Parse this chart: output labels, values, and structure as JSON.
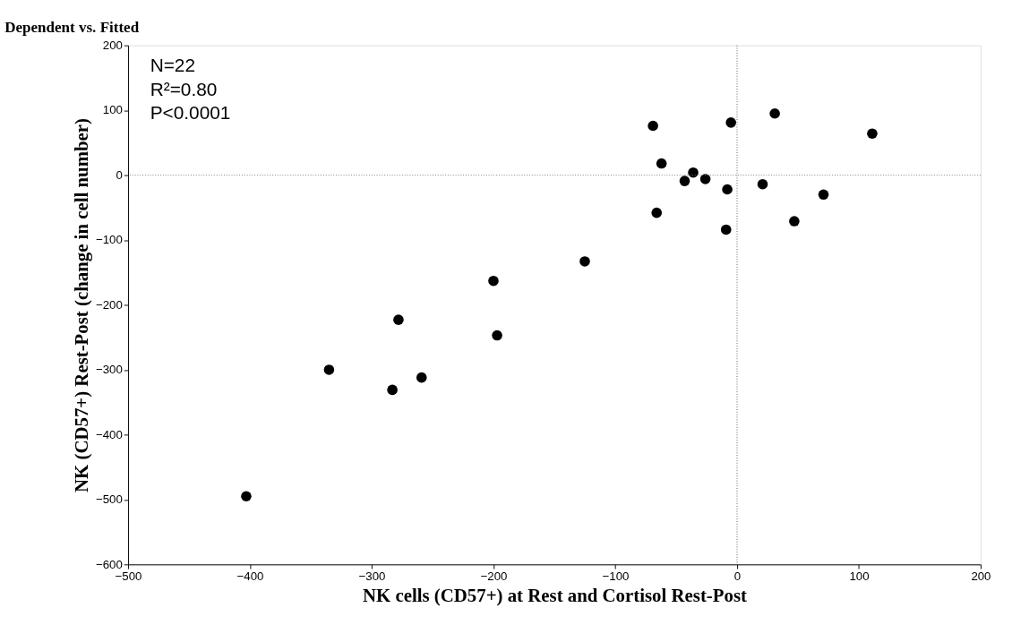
{
  "chart_data": {
    "type": "scatter",
    "title": "Dependent vs. Fitted",
    "xlabel": "NK cells (CD57+) at Rest and Cortisol Rest-Post",
    "ylabel": "NK (CD57+) Rest-Post (change in cell number)",
    "annotations": [
      "N=22",
      "R²=0.80",
      "P<0.0001"
    ],
    "series": [
      {
        "color": "#000000",
        "x": [
          -69,
          -5,
          31,
          111,
          -62,
          -36,
          -43,
          -26,
          -8,
          21,
          71,
          -66,
          47,
          -9,
          -200,
          -278,
          -197,
          -335,
          -259,
          -283,
          -403,
          -125
        ],
        "values": [
          76,
          81,
          95,
          64,
          18,
          4,
          -9,
          -6,
          -22,
          -14,
          -30,
          -58,
          -71,
          -84,
          -163,
          -223,
          -247,
          -300,
          -312,
          -331,
          -495,
          -133
        ]
      }
    ],
    "xlim": [
      -500,
      200
    ],
    "xticks": [
      -500,
      -400,
      -300,
      -200,
      -100,
      0,
      100,
      200
    ],
    "ylim": [
      -600,
      200
    ],
    "yticks": [
      -600,
      -500,
      -400,
      -300,
      -200,
      -100,
      0,
      100,
      200
    ],
    "ref_lines": [
      {
        "axis": "x",
        "value": 0,
        "line_style": "dotted",
        "color": "#555555"
      },
      {
        "axis": "y",
        "value": 0,
        "line_style": "dotted",
        "color": "#777777"
      }
    ],
    "grid": false,
    "legend": false,
    "marker": "circle"
  }
}
